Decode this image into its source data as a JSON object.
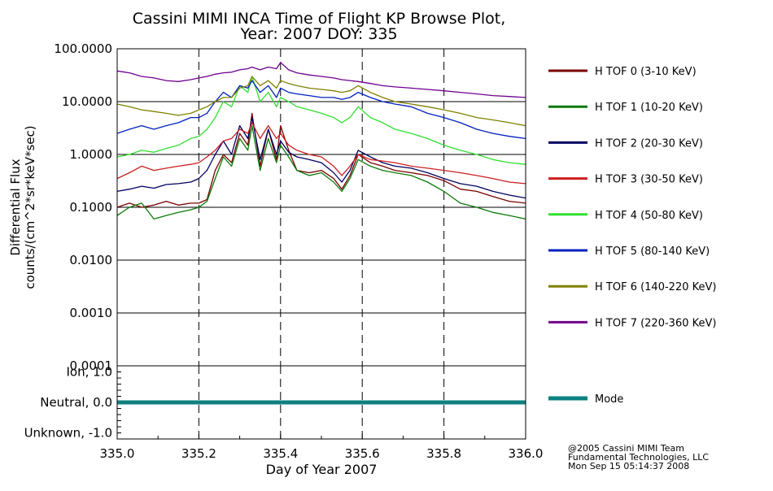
{
  "title": {
    "line1": "Cassini MIMI INCA Time of Flight KP Browse Plot,",
    "line2": "Year: 2007 DOY: 335"
  },
  "footer": {
    "line1": "@2005 Cassini MIMI Team",
    "line2": "Fundamental Technologies, LLC",
    "line3": "Mon Sep 15 05:14:37 2008"
  },
  "chart_data": [
    {
      "type": "line",
      "title": "Cassini MIMI INCA Time of Flight KP Browse Plot, Year: 2007 DOY: 335",
      "ylabel_line1": "Differential Flux",
      "ylabel_line2": "counts/(cm^2*sr*keV*sec)",
      "xlabel": "Day of Year 2007",
      "y_scale": "log",
      "ylim": [
        0.0001,
        100
      ],
      "xlim": [
        335.0,
        336.0
      ],
      "x_ticks": [
        "335.0",
        "335.2",
        "335.4",
        "335.6",
        "335.8",
        "336.0"
      ],
      "y_ticks": [
        "100.0000",
        "10.0000",
        "1.0000",
        "0.1000",
        "0.0100",
        "0.0010",
        "0.0001"
      ],
      "grid": true,
      "legend_position": "right",
      "series": [
        {
          "name": "H TOF 0 (3-10 KeV)",
          "color": "#7a0000",
          "x": [
            335.0,
            335.03,
            335.06,
            335.09,
            335.12,
            335.15,
            335.18,
            335.2,
            335.22,
            335.24,
            335.26,
            335.28,
            335.3,
            335.32,
            335.33,
            335.35,
            335.37,
            335.39,
            335.4,
            335.42,
            335.44,
            335.47,
            335.5,
            335.53,
            335.55,
            335.57,
            335.59,
            335.62,
            335.65,
            335.68,
            335.72,
            335.76,
            335.8,
            335.84,
            335.88,
            335.92,
            335.96,
            336.0
          ],
          "y": [
            0.1,
            0.12,
            0.1,
            0.11,
            0.13,
            0.11,
            0.12,
            0.12,
            0.14,
            0.5,
            1.0,
            0.7,
            2.5,
            1.5,
            6.0,
            0.6,
            3.0,
            0.8,
            3.5,
            1.2,
            0.5,
            0.45,
            0.5,
            0.35,
            0.22,
            0.4,
            1.0,
            0.7,
            0.6,
            0.5,
            0.45,
            0.4,
            0.32,
            0.22,
            0.2,
            0.16,
            0.13,
            0.12
          ]
        },
        {
          "name": "H TOF 1 (10-20 KeV)",
          "color": "#0a7a0a",
          "x": [
            335.0,
            335.03,
            335.06,
            335.09,
            335.12,
            335.15,
            335.18,
            335.2,
            335.22,
            335.24,
            335.26,
            335.28,
            335.3,
            335.32,
            335.33,
            335.35,
            335.37,
            335.39,
            335.4,
            335.42,
            335.44,
            335.47,
            335.5,
            335.53,
            335.55,
            335.57,
            335.59,
            335.62,
            335.65,
            335.68,
            335.72,
            335.76,
            335.8,
            335.84,
            335.88,
            335.92,
            335.96,
            336.0
          ],
          "y": [
            0.07,
            0.1,
            0.12,
            0.06,
            0.07,
            0.08,
            0.09,
            0.1,
            0.13,
            0.35,
            0.9,
            0.6,
            2.0,
            1.2,
            3.5,
            0.5,
            2.0,
            0.7,
            1.5,
            0.9,
            0.5,
            0.4,
            0.45,
            0.3,
            0.2,
            0.35,
            0.8,
            0.6,
            0.5,
            0.45,
            0.4,
            0.3,
            0.2,
            0.12,
            0.1,
            0.08,
            0.07,
            0.06
          ]
        },
        {
          "name": "H TOF 2 (20-30 KeV)",
          "color": "#000060",
          "x": [
            335.0,
            335.03,
            335.06,
            335.09,
            335.12,
            335.15,
            335.18,
            335.2,
            335.22,
            335.24,
            335.26,
            335.28,
            335.3,
            335.32,
            335.33,
            335.35,
            335.37,
            335.39,
            335.4,
            335.42,
            335.44,
            335.47,
            335.5,
            335.53,
            335.55,
            335.57,
            335.59,
            335.62,
            335.65,
            335.68,
            335.72,
            335.76,
            335.8,
            335.84,
            335.88,
            335.92,
            335.96,
            336.0
          ],
          "y": [
            0.2,
            0.22,
            0.25,
            0.23,
            0.27,
            0.28,
            0.3,
            0.35,
            0.5,
            1.0,
            1.8,
            1.0,
            3.5,
            2.0,
            5.0,
            0.8,
            3.0,
            1.0,
            1.8,
            1.1,
            0.9,
            0.8,
            0.7,
            0.45,
            0.3,
            0.5,
            1.2,
            0.9,
            0.7,
            0.6,
            0.55,
            0.45,
            0.35,
            0.28,
            0.25,
            0.2,
            0.17,
            0.15
          ]
        },
        {
          "name": "H TOF 3 (30-50 KeV)",
          "color": "#cc2020",
          "x": [
            335.0,
            335.03,
            335.06,
            335.09,
            335.12,
            335.15,
            335.18,
            335.2,
            335.22,
            335.24,
            335.26,
            335.28,
            335.3,
            335.32,
            335.33,
            335.35,
            335.37,
            335.39,
            335.4,
            335.42,
            335.44,
            335.47,
            335.5,
            335.53,
            335.55,
            335.57,
            335.59,
            335.62,
            335.65,
            335.68,
            335.72,
            335.76,
            335.8,
            335.84,
            335.88,
            335.92,
            335.96,
            336.0
          ],
          "y": [
            0.35,
            0.45,
            0.6,
            0.5,
            0.55,
            0.6,
            0.65,
            0.7,
            0.9,
            1.2,
            1.8,
            2.0,
            3.0,
            2.5,
            4.0,
            2.0,
            3.5,
            2.0,
            2.5,
            1.5,
            1.2,
            1.0,
            0.9,
            0.6,
            0.4,
            0.6,
            1.0,
            0.8,
            0.75,
            0.7,
            0.6,
            0.55,
            0.5,
            0.45,
            0.4,
            0.35,
            0.3,
            0.28
          ]
        },
        {
          "name": "H TOF 4 (50-80 KeV)",
          "color": "#30e030",
          "x": [
            335.0,
            335.03,
            335.06,
            335.09,
            335.12,
            335.15,
            335.18,
            335.2,
            335.22,
            335.24,
            335.26,
            335.28,
            335.3,
            335.32,
            335.33,
            335.35,
            335.37,
            335.39,
            335.4,
            335.42,
            335.44,
            335.47,
            335.5,
            335.53,
            335.55,
            335.57,
            335.59,
            335.62,
            335.65,
            335.68,
            335.72,
            335.76,
            335.8,
            335.84,
            335.88,
            335.92,
            335.96,
            336.0
          ],
          "y": [
            0.9,
            1.0,
            1.2,
            1.1,
            1.3,
            1.5,
            2.0,
            2.2,
            3.0,
            5.0,
            10.0,
            8.0,
            20.0,
            15.0,
            30.0,
            10.0,
            15.0,
            8.0,
            12.0,
            10.0,
            8.0,
            7.0,
            6.0,
            5.0,
            4.0,
            5.0,
            8.0,
            5.0,
            4.0,
            3.0,
            2.5,
            2.0,
            1.5,
            1.2,
            1.0,
            0.8,
            0.7,
            0.65
          ]
        },
        {
          "name": "H TOF 5 (80-140 KeV)",
          "color": "#0020c0",
          "x": [
            335.0,
            335.03,
            335.06,
            335.09,
            335.12,
            335.15,
            335.18,
            335.2,
            335.22,
            335.24,
            335.26,
            335.28,
            335.3,
            335.32,
            335.33,
            335.35,
            335.37,
            335.39,
            335.4,
            335.42,
            335.44,
            335.47,
            335.5,
            335.53,
            335.55,
            335.57,
            335.59,
            335.62,
            335.65,
            335.68,
            335.72,
            335.76,
            335.8,
            335.84,
            335.88,
            335.92,
            335.96,
            336.0
          ],
          "y": [
            2.5,
            3.0,
            3.5,
            3.0,
            3.5,
            4.0,
            5.0,
            5.0,
            6.0,
            10.0,
            15.0,
            12.0,
            20.0,
            18.0,
            25.0,
            15.0,
            20.0,
            12.0,
            18.0,
            15.0,
            14.0,
            13.0,
            12.0,
            12.0,
            11.0,
            12.0,
            15.0,
            12.0,
            10.0,
            9.0,
            8.0,
            6.0,
            5.0,
            4.0,
            3.0,
            2.5,
            2.2,
            2.0
          ]
        },
        {
          "name": "H TOF 6 (140-220 KeV)",
          "color": "#808000",
          "x": [
            335.0,
            335.03,
            335.06,
            335.09,
            335.12,
            335.15,
            335.18,
            335.2,
            335.22,
            335.24,
            335.26,
            335.28,
            335.3,
            335.32,
            335.33,
            335.35,
            335.37,
            335.39,
            335.4,
            335.42,
            335.44,
            335.47,
            335.5,
            335.53,
            335.55,
            335.57,
            335.59,
            335.62,
            335.65,
            335.68,
            335.72,
            335.76,
            335.8,
            335.84,
            335.88,
            335.92,
            335.96,
            336.0
          ],
          "y": [
            9.0,
            8.0,
            7.0,
            6.5,
            6.0,
            5.5,
            6.0,
            7.0,
            8.0,
            10.0,
            12.0,
            12.0,
            18.0,
            20.0,
            30.0,
            20.0,
            25.0,
            18.0,
            25.0,
            22.0,
            20.0,
            18.0,
            17.0,
            16.0,
            15.0,
            16.0,
            20.0,
            15.0,
            12.0,
            10.0,
            9.0,
            8.0,
            7.0,
            6.0,
            5.0,
            4.5,
            4.0,
            3.5
          ]
        },
        {
          "name": "H TOF 7 (220-360 KeV)",
          "color": "#700090",
          "x": [
            335.0,
            335.03,
            335.06,
            335.09,
            335.12,
            335.15,
            335.18,
            335.2,
            335.22,
            335.24,
            335.26,
            335.28,
            335.3,
            335.32,
            335.33,
            335.35,
            335.37,
            335.39,
            335.4,
            335.42,
            335.44,
            335.47,
            335.5,
            335.53,
            335.55,
            335.57,
            335.59,
            335.62,
            335.65,
            335.68,
            335.72,
            335.76,
            335.8,
            335.84,
            335.88,
            335.92,
            335.96,
            336.0
          ],
          "y": [
            38.0,
            35.0,
            30.0,
            28.0,
            25.0,
            24.0,
            26.0,
            28.0,
            30.0,
            33.0,
            35.0,
            36.0,
            40.0,
            42.0,
            45.0,
            40.0,
            45.0,
            42.0,
            55.0,
            40.0,
            35.0,
            32.0,
            30.0,
            28.0,
            26.0,
            25.0,
            24.0,
            22.0,
            20.0,
            19.0,
            18.0,
            17.0,
            16.0,
            15.0,
            14.0,
            13.0,
            12.5,
            12.0
          ]
        }
      ]
    },
    {
      "type": "line",
      "y_tick_labels": [
        "Ion, 1.0",
        "Neutral, 0.0",
        "Unknown, -1.0"
      ],
      "y_ticks": [
        1.0,
        0.0,
        -1.0
      ],
      "ylim": [
        -1.2,
        1.2
      ],
      "xlim": [
        335.0,
        336.0
      ],
      "x_ticks": [
        "335.0",
        "335.2",
        "335.4",
        "335.6",
        "335.8",
        "336.0"
      ],
      "xlabel": "Day of Year 2007",
      "series": [
        {
          "name": "Mode",
          "color": "#0e8080",
          "x": [
            335.0,
            336.0
          ],
          "y": [
            0.0,
            0.0
          ]
        }
      ]
    }
  ]
}
